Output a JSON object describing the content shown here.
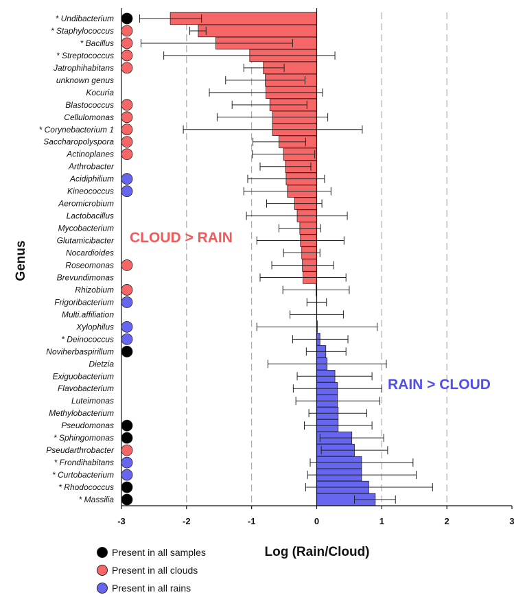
{
  "chart_data": {
    "type": "bar",
    "orientation": "horizontal",
    "ylabel": "Genus",
    "xlabel": "Log (Rain/Cloud)",
    "xlim": [
      -3,
      3
    ],
    "xticks": [
      "-3",
      "-2",
      "-1",
      "0",
      "1",
      "2",
      "3"
    ],
    "grid": "vertical dashed lines at x = -2, -1, 1, 2",
    "annotations": [
      {
        "text": "CLOUD > RAIN",
        "color": "#f05a5a"
      },
      {
        "text": "RAIN > CLOUD",
        "color": "#5050e8"
      }
    ],
    "colors": {
      "cloud": "#f66666",
      "rain": "#6666f0",
      "all": "#000000"
    },
    "legend": [
      {
        "label": "Present in all samples",
        "color": "#000000"
      },
      {
        "label": "Present in all clouds",
        "color": "#f66666"
      },
      {
        "label": "Present in all rains",
        "color": "#6666f0"
      }
    ],
    "genera": [
      {
        "label": "* Undibacterium",
        "value": -2.25,
        "err_low": -2.72,
        "err_high": -1.77,
        "marker": "all"
      },
      {
        "label": "* Staphylococcus",
        "value": -1.82,
        "err_low": -1.95,
        "err_high": -1.7,
        "marker": "cloud"
      },
      {
        "label": "* Bacillus",
        "value": -1.55,
        "err_low": -2.7,
        "err_high": -0.37,
        "marker": "cloud"
      },
      {
        "label": "* Streptococcus",
        "value": -1.03,
        "err_low": -2.35,
        "err_high": 0.28,
        "marker": "cloud"
      },
      {
        "label": "Jatrophihabitans",
        "value": -0.82,
        "err_low": -1.12,
        "err_high": -0.5,
        "marker": "cloud"
      },
      {
        "label": "unknown genus",
        "value": -0.79,
        "err_low": -1.4,
        "err_high": -0.18,
        "marker": null
      },
      {
        "label": "Kocuria",
        "value": -0.78,
        "err_low": -1.65,
        "err_high": 0.09,
        "marker": null
      },
      {
        "label": "Blastococcus",
        "value": -0.72,
        "err_low": -1.3,
        "err_high": -0.15,
        "marker": "cloud"
      },
      {
        "label": "Cellulomonas",
        "value": -0.68,
        "err_low": -1.53,
        "err_high": 0.17,
        "marker": "cloud"
      },
      {
        "label": "* Corynebacterium 1",
        "value": -0.68,
        "err_low": -2.05,
        "err_high": 0.7,
        "marker": "cloud"
      },
      {
        "label": "Saccharopolyspora",
        "value": -0.58,
        "err_low": -0.98,
        "err_high": -0.17,
        "marker": "cloud"
      },
      {
        "label": "Actinoplanes",
        "value": -0.51,
        "err_low": -0.99,
        "err_high": -0.03,
        "marker": "cloud"
      },
      {
        "label": "Arthrobacter",
        "value": -0.48,
        "err_low": -0.87,
        "err_high": -0.09,
        "marker": null
      },
      {
        "label": "Acidiphilium",
        "value": -0.47,
        "err_low": -1.06,
        "err_high": 0.12,
        "marker": "rain"
      },
      {
        "label": "Kineococcus",
        "value": -0.45,
        "err_low": -1.12,
        "err_high": 0.22,
        "marker": "rain"
      },
      {
        "label": "Aeromicrobium",
        "value": -0.34,
        "err_low": -0.77,
        "err_high": 0.08,
        "marker": null
      },
      {
        "label": "Lactobacillus",
        "value": -0.3,
        "err_low": -1.08,
        "err_high": 0.47,
        "marker": null
      },
      {
        "label": "Mycobacterium",
        "value": -0.26,
        "err_low": -0.58,
        "err_high": 0.06,
        "marker": null
      },
      {
        "label": "Glutamicibacter",
        "value": -0.25,
        "err_low": -0.92,
        "err_high": 0.42,
        "marker": null
      },
      {
        "label": "Nocardioides",
        "value": -0.23,
        "err_low": -0.51,
        "err_high": 0.05,
        "marker": null
      },
      {
        "label": "Roseomonas",
        "value": -0.22,
        "err_low": -0.69,
        "err_high": 0.26,
        "marker": "cloud"
      },
      {
        "label": "Brevundimonas",
        "value": -0.21,
        "err_low": -0.87,
        "err_high": 0.45,
        "marker": null
      },
      {
        "label": "Rhizobium",
        "value": -0.01,
        "err_low": -0.52,
        "err_high": 0.5,
        "marker": "cloud"
      },
      {
        "label": "Frigoribacterium",
        "value": 0.0,
        "err_low": -0.15,
        "err_high": 0.15,
        "marker": "rain"
      },
      {
        "label": "Multi.affiliation",
        "value": 0.0,
        "err_low": -0.41,
        "err_high": 0.41,
        "marker": null
      },
      {
        "label": "Xylophilus",
        "value": 0.01,
        "err_low": -0.92,
        "err_high": 0.93,
        "marker": "rain"
      },
      {
        "label": "* Deinococcus",
        "value": 0.05,
        "err_low": -0.37,
        "err_high": 0.48,
        "marker": "rain"
      },
      {
        "label": "Noviherbaspirillum",
        "value": 0.14,
        "err_low": -0.16,
        "err_high": 0.45,
        "marker": "all"
      },
      {
        "label": "Dietzia",
        "value": 0.16,
        "err_low": -0.75,
        "err_high": 1.07,
        "marker": null
      },
      {
        "label": "Exiguobacterium",
        "value": 0.28,
        "err_low": -0.3,
        "err_high": 0.85,
        "marker": null
      },
      {
        "label": "Flavobacterium",
        "value": 0.32,
        "err_low": -0.36,
        "err_high": 1.0,
        "marker": null
      },
      {
        "label": "Luteimonas",
        "value": 0.32,
        "err_low": -0.32,
        "err_high": 0.97,
        "marker": null
      },
      {
        "label": "Methylobacterium",
        "value": 0.33,
        "err_low": -0.12,
        "err_high": 0.77,
        "marker": null
      },
      {
        "label": "Pseudomonas",
        "value": 0.33,
        "err_low": -0.19,
        "err_high": 0.85,
        "marker": "all"
      },
      {
        "label": "* Sphingomonas",
        "value": 0.54,
        "err_low": 0.05,
        "err_high": 1.03,
        "marker": "all"
      },
      {
        "label": "Pseudarthrobacter",
        "value": 0.58,
        "err_low": 0.07,
        "err_high": 1.09,
        "marker": "cloud"
      },
      {
        "label": "* Frondihabitans",
        "value": 0.69,
        "err_low": -0.1,
        "err_high": 1.48,
        "marker": "rain"
      },
      {
        "label": "* Curtobacterium",
        "value": 0.69,
        "err_low": -0.14,
        "err_high": 1.53,
        "marker": "rain"
      },
      {
        "label": "* Rhodococcus",
        "value": 0.8,
        "err_low": -0.17,
        "err_high": 1.78,
        "marker": "all"
      },
      {
        "label": "* Massilia",
        "value": 0.9,
        "err_low": 0.58,
        "err_high": 1.21,
        "marker": "all"
      }
    ]
  }
}
